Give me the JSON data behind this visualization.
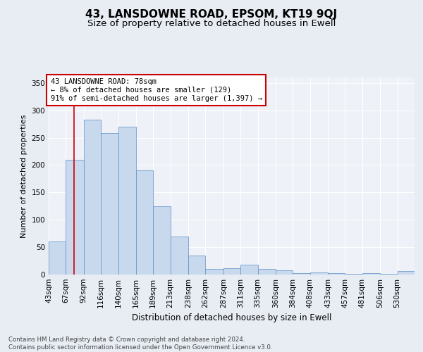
{
  "title": "43, LANSDOWNE ROAD, EPSOM, KT19 9QJ",
  "subtitle": "Size of property relative to detached houses in Ewell",
  "xlabel": "Distribution of detached houses by size in Ewell",
  "ylabel": "Number of detached properties",
  "annotation_line1": "43 LANSDOWNE ROAD: 78sqm",
  "annotation_line2": "← 8% of detached houses are smaller (129)",
  "annotation_line3": "91% of semi-detached houses are larger (1,397) →",
  "footer1": "Contains HM Land Registry data © Crown copyright and database right 2024.",
  "footer2": "Contains public sector information licensed under the Open Government Licence v3.0.",
  "bin_labels": [
    "43sqm",
    "67sqm",
    "92sqm",
    "116sqm",
    "140sqm",
    "165sqm",
    "189sqm",
    "213sqm",
    "238sqm",
    "262sqm",
    "287sqm",
    "311sqm",
    "335sqm",
    "360sqm",
    "384sqm",
    "408sqm",
    "433sqm",
    "457sqm",
    "481sqm",
    "506sqm",
    "530sqm"
  ],
  "bin_edges": [
    43,
    67,
    92,
    116,
    140,
    165,
    189,
    213,
    238,
    262,
    287,
    311,
    335,
    360,
    384,
    408,
    433,
    457,
    481,
    506,
    530
  ],
  "bar_heights": [
    60,
    210,
    283,
    258,
    270,
    190,
    125,
    70,
    35,
    10,
    12,
    18,
    10,
    8,
    2,
    4,
    2,
    1,
    3,
    1,
    7
  ],
  "bar_color": "#c8d9ee",
  "bar_edge_color": "#5b8fc9",
  "red_line_x": 78,
  "annotation_box_color": "#ffffff",
  "annotation_box_edge": "#cc0000",
  "ylim": [
    0,
    360
  ],
  "yticks": [
    0,
    50,
    100,
    150,
    200,
    250,
    300,
    350
  ],
  "bg_color": "#e8edf4",
  "plot_bg_color": "#eef1f7",
  "grid_color": "#ffffff",
  "title_fontsize": 11,
  "subtitle_fontsize": 9.5,
  "tick_fontsize": 7.5,
  "ylabel_fontsize": 8,
  "xlabel_fontsize": 8.5,
  "annotation_fontsize": 7.5,
  "footer_fontsize": 6.2
}
